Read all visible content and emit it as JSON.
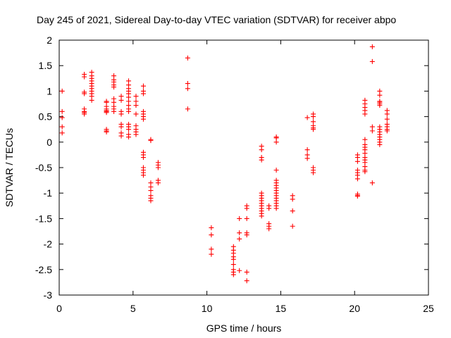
{
  "chart_data": {
    "type": "scatter",
    "title": "Day 245 of 2021, Sidereal Day-to-day VTEC variation (SDTVAR) for receiver abpo",
    "xlabel": "GPS time / hours",
    "ylabel": "SDTVAR / TECUs",
    "xlim": [
      0,
      25
    ],
    "ylim": [
      -3,
      2
    ],
    "x_ticks": [
      "0",
      "5",
      "10",
      "15",
      "20",
      "25"
    ],
    "y_ticks": [
      "-3",
      "-2.5",
      "-2",
      "-1.5",
      "-1",
      "-0.5",
      "0",
      "0.5",
      "1",
      "1.5",
      "2"
    ],
    "grid": false,
    "marker": "plus",
    "color": "#ff0000",
    "series": [
      {
        "name": "SDTVAR",
        "points": [
          [
            0.2,
            1.0
          ],
          [
            0.2,
            0.6
          ],
          [
            0.2,
            0.48
          ],
          [
            0.2,
            0.3
          ],
          [
            0.2,
            0.18
          ],
          [
            1.7,
            1.33
          ],
          [
            1.7,
            1.28
          ],
          [
            1.7,
            0.98
          ],
          [
            1.7,
            0.95
          ],
          [
            1.7,
            0.65
          ],
          [
            1.7,
            0.6
          ],
          [
            1.7,
            0.58
          ],
          [
            1.7,
            0.55
          ],
          [
            2.2,
            1.37
          ],
          [
            2.2,
            1.3
          ],
          [
            2.2,
            1.25
          ],
          [
            2.2,
            1.2
          ],
          [
            2.2,
            1.15
          ],
          [
            2.2,
            1.1
          ],
          [
            2.2,
            1.05
          ],
          [
            2.2,
            1.0
          ],
          [
            2.2,
            0.95
          ],
          [
            2.2,
            0.9
          ],
          [
            2.2,
            0.82
          ],
          [
            3.2,
            0.8
          ],
          [
            3.2,
            0.78
          ],
          [
            3.2,
            0.7
          ],
          [
            3.2,
            0.65
          ],
          [
            3.2,
            0.62
          ],
          [
            3.2,
            0.6
          ],
          [
            3.2,
            0.58
          ],
          [
            3.2,
            0.25
          ],
          [
            3.2,
            0.22
          ],
          [
            3.2,
            0.2
          ],
          [
            3.7,
            1.3
          ],
          [
            3.7,
            1.22
          ],
          [
            3.7,
            1.18
          ],
          [
            3.7,
            1.12
          ],
          [
            3.7,
            1.08
          ],
          [
            3.7,
            0.85
          ],
          [
            3.7,
            0.78
          ],
          [
            3.7,
            0.7
          ],
          [
            3.7,
            0.65
          ],
          [
            3.7,
            0.6
          ],
          [
            4.2,
            0.9
          ],
          [
            4.2,
            0.82
          ],
          [
            4.2,
            0.6
          ],
          [
            4.2,
            0.55
          ],
          [
            4.2,
            0.35
          ],
          [
            4.2,
            0.3
          ],
          [
            4.2,
            0.18
          ],
          [
            4.2,
            0.12
          ],
          [
            4.7,
            1.2
          ],
          [
            4.7,
            1.12
          ],
          [
            4.7,
            1.05
          ],
          [
            4.7,
            1.0
          ],
          [
            4.7,
            0.95
          ],
          [
            4.7,
            0.88
          ],
          [
            4.7,
            0.8
          ],
          [
            4.7,
            0.72
          ],
          [
            4.7,
            0.65
          ],
          [
            4.7,
            0.6
          ],
          [
            4.7,
            0.35
          ],
          [
            4.7,
            0.3
          ],
          [
            4.7,
            0.25
          ],
          [
            4.7,
            0.15
          ],
          [
            4.7,
            0.1
          ],
          [
            5.2,
            0.9
          ],
          [
            5.2,
            0.8
          ],
          [
            5.2,
            0.72
          ],
          [
            5.2,
            0.55
          ],
          [
            5.2,
            0.32
          ],
          [
            5.2,
            0.25
          ],
          [
            5.2,
            0.2
          ],
          [
            5.2,
            0.15
          ],
          [
            5.7,
            1.1
          ],
          [
            5.7,
            1.0
          ],
          [
            5.7,
            0.95
          ],
          [
            5.7,
            0.6
          ],
          [
            5.7,
            0.55
          ],
          [
            5.7,
            0.5
          ],
          [
            5.7,
            0.45
          ],
          [
            5.7,
            -0.2
          ],
          [
            5.7,
            -0.25
          ],
          [
            5.7,
            -0.3
          ],
          [
            5.7,
            -0.5
          ],
          [
            5.7,
            -0.55
          ],
          [
            5.7,
            -0.6
          ],
          [
            5.7,
            -0.65
          ],
          [
            6.2,
            0.05
          ],
          [
            6.2,
            0.03
          ],
          [
            6.2,
            -0.8
          ],
          [
            6.2,
            -0.88
          ],
          [
            6.2,
            -0.95
          ],
          [
            6.2,
            -1.05
          ],
          [
            6.2,
            -1.1
          ],
          [
            6.2,
            -1.15
          ],
          [
            6.7,
            -0.4
          ],
          [
            6.7,
            -0.45
          ],
          [
            6.7,
            -0.5
          ],
          [
            6.7,
            -0.75
          ],
          [
            6.7,
            -0.8
          ],
          [
            8.7,
            1.65
          ],
          [
            8.7,
            1.15
          ],
          [
            8.7,
            1.05
          ],
          [
            8.7,
            0.65
          ],
          [
            10.3,
            -1.68
          ],
          [
            10.3,
            -1.82
          ],
          [
            10.3,
            -2.1
          ],
          [
            10.3,
            -2.2
          ],
          [
            11.8,
            -2.05
          ],
          [
            11.8,
            -2.12
          ],
          [
            11.8,
            -2.18
          ],
          [
            11.8,
            -2.25
          ],
          [
            11.8,
            -2.3
          ],
          [
            11.8,
            -2.4
          ],
          [
            11.8,
            -2.5
          ],
          [
            11.8,
            -2.55
          ],
          [
            11.8,
            -2.6
          ],
          [
            12.2,
            -1.5
          ],
          [
            12.2,
            -1.78
          ],
          [
            12.2,
            -1.9
          ],
          [
            12.2,
            -2.52
          ],
          [
            12.7,
            -1.25
          ],
          [
            12.7,
            -1.3
          ],
          [
            12.7,
            -1.5
          ],
          [
            12.7,
            -1.78
          ],
          [
            12.7,
            -1.82
          ],
          [
            12.7,
            -2.55
          ],
          [
            12.7,
            -2.72
          ],
          [
            13.7,
            -0.08
          ],
          [
            13.7,
            -0.15
          ],
          [
            13.7,
            -0.3
          ],
          [
            13.7,
            -0.35
          ],
          [
            13.7,
            -1.0
          ],
          [
            13.7,
            -1.05
          ],
          [
            13.7,
            -1.1
          ],
          [
            13.7,
            -1.15
          ],
          [
            13.7,
            -1.2
          ],
          [
            13.7,
            -1.25
          ],
          [
            13.7,
            -1.3
          ],
          [
            13.7,
            -1.35
          ],
          [
            13.7,
            -1.4
          ],
          [
            13.7,
            -1.45
          ],
          [
            14.2,
            -1.25
          ],
          [
            14.2,
            -1.3
          ],
          [
            14.2,
            -1.6
          ],
          [
            14.2,
            -1.65
          ],
          [
            14.2,
            -1.7
          ],
          [
            14.7,
            0.1
          ],
          [
            14.7,
            0.08
          ],
          [
            14.7,
            0.0
          ],
          [
            14.7,
            -0.55
          ],
          [
            14.7,
            -0.75
          ],
          [
            14.7,
            -0.8
          ],
          [
            14.7,
            -0.85
          ],
          [
            14.7,
            -0.9
          ],
          [
            14.7,
            -0.95
          ],
          [
            14.7,
            -1.0
          ],
          [
            14.7,
            -1.05
          ],
          [
            14.7,
            -1.1
          ],
          [
            14.7,
            -1.15
          ],
          [
            14.7,
            -1.2
          ],
          [
            14.7,
            -1.25
          ],
          [
            14.7,
            -1.3
          ],
          [
            15.8,
            -1.05
          ],
          [
            15.8,
            -1.12
          ],
          [
            15.8,
            -1.35
          ],
          [
            15.8,
            -1.65
          ],
          [
            16.8,
            0.48
          ],
          [
            16.8,
            -0.15
          ],
          [
            16.8,
            -0.25
          ],
          [
            16.8,
            -0.32
          ],
          [
            17.2,
            0.55
          ],
          [
            17.2,
            0.5
          ],
          [
            17.2,
            0.4
          ],
          [
            17.2,
            0.32
          ],
          [
            17.2,
            0.28
          ],
          [
            17.2,
            0.25
          ],
          [
            17.2,
            -0.5
          ],
          [
            17.2,
            -0.55
          ],
          [
            17.2,
            -0.6
          ],
          [
            20.2,
            -0.25
          ],
          [
            20.2,
            -0.3
          ],
          [
            20.2,
            -0.38
          ],
          [
            20.2,
            -0.55
          ],
          [
            20.2,
            -0.6
          ],
          [
            20.2,
            -0.65
          ],
          [
            20.2,
            -0.72
          ],
          [
            20.2,
            -1.02
          ],
          [
            20.2,
            -1.05
          ],
          [
            20.2,
            -1.06
          ],
          [
            20.7,
            0.82
          ],
          [
            20.7,
            0.75
          ],
          [
            20.7,
            0.68
          ],
          [
            20.7,
            0.62
          ],
          [
            20.7,
            0.55
          ],
          [
            20.7,
            0.05
          ],
          [
            20.7,
            -0.05
          ],
          [
            20.7,
            -0.1
          ],
          [
            20.7,
            -0.15
          ],
          [
            20.7,
            -0.22
          ],
          [
            20.7,
            -0.3
          ],
          [
            20.7,
            -0.35
          ],
          [
            20.7,
            -0.4
          ],
          [
            20.7,
            -0.48
          ],
          [
            20.7,
            -0.55
          ],
          [
            20.7,
            -0.58
          ],
          [
            21.2,
            1.87
          ],
          [
            21.2,
            1.58
          ],
          [
            21.2,
            0.3
          ],
          [
            21.2,
            0.22
          ],
          [
            21.2,
            -0.8
          ],
          [
            21.7,
            1.0
          ],
          [
            21.7,
            0.92
          ],
          [
            21.7,
            0.8
          ],
          [
            21.7,
            0.78
          ],
          [
            21.7,
            0.75
          ],
          [
            21.7,
            0.72
          ],
          [
            21.7,
            0.3
          ],
          [
            21.7,
            0.25
          ],
          [
            21.7,
            0.2
          ],
          [
            21.7,
            0.15
          ],
          [
            21.7,
            0.1
          ],
          [
            21.7,
            0.05
          ],
          [
            21.7,
            0.0
          ],
          [
            21.7,
            -0.05
          ],
          [
            22.2,
            0.62
          ],
          [
            22.2,
            0.55
          ],
          [
            22.2,
            0.45
          ],
          [
            22.2,
            0.35
          ],
          [
            22.2,
            0.3
          ],
          [
            22.2,
            0.25
          ],
          [
            22.2,
            0.22
          ]
        ]
      }
    ]
  }
}
